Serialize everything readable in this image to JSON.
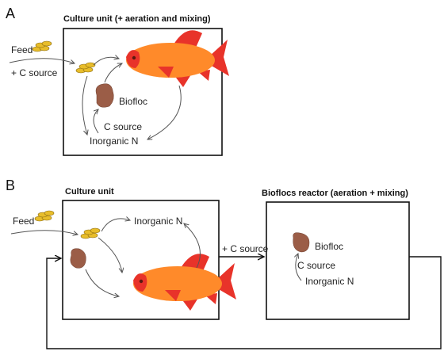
{
  "panels": {
    "a": {
      "letter": "A",
      "box_title": "Culture unit (+ aeration and mixing)",
      "feed": "Feed",
      "c_source_input": "+ C source",
      "biofloc": "Biofloc",
      "c_source": "C source",
      "inorganic_n": "Inorganic N"
    },
    "b": {
      "letter": "B",
      "culture_title": "Culture unit",
      "reactor_title": "Bioflocs reactor (aeration + mixing)",
      "feed": "Feed",
      "inorganic_n": "Inorganic N",
      "c_source_input": "+ C source",
      "biofloc": "Biofloc",
      "c_source": "C source",
      "inorganic_n_reactor": "Inorganic N"
    }
  },
  "colors": {
    "fish_body": "#ff8a2a",
    "fish_fins": "#e8332a",
    "feed_pellet": "#e8bd2a",
    "biofloc": "#9b5d47"
  }
}
